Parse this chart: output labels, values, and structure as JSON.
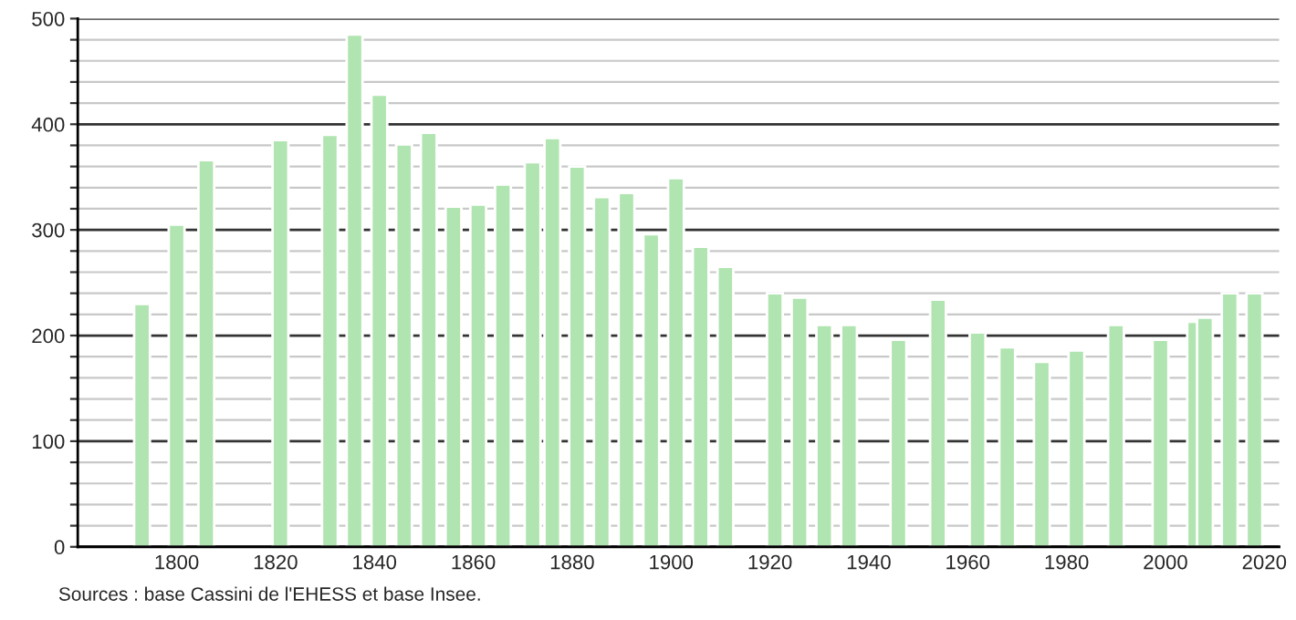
{
  "chart_data": {
    "type": "bar",
    "x": [
      1793,
      1800,
      1806,
      1821,
      1831,
      1836,
      1841,
      1846,
      1851,
      1856,
      1861,
      1866,
      1872,
      1876,
      1881,
      1886,
      1891,
      1896,
      1901,
      1906,
      1911,
      1921,
      1926,
      1931,
      1936,
      1946,
      1954,
      1962,
      1968,
      1975,
      1982,
      1990,
      1999,
      2006,
      2008,
      2013,
      2018
    ],
    "values": [
      230,
      305,
      366,
      385,
      390,
      485,
      428,
      381,
      392,
      322,
      324,
      343,
      364,
      387,
      360,
      331,
      335,
      296,
      349,
      284,
      265,
      240,
      236,
      210,
      210,
      196,
      234,
      203,
      189,
      175,
      186,
      210,
      196,
      213,
      217,
      240,
      240
    ],
    "color": "#b0e4b0",
    "xlim": [
      1780,
      2023
    ],
    "xticks": [
      1800,
      1820,
      1840,
      1860,
      1880,
      1900,
      1920,
      1940,
      1960,
      1980,
      2000,
      2020
    ],
    "ylim": [
      0,
      500
    ],
    "yticks": [
      0,
      {
        "value": 20,
        "label": null
      },
      {
        "value": 40,
        "label": null
      },
      {
        "value": 60,
        "label": null
      },
      {
        "value": 80,
        "label": null
      },
      100,
      {
        "value": 120,
        "label": null
      },
      {
        "value": 140,
        "label": null
      },
      {
        "value": 160,
        "label": null
      },
      {
        "value": 180,
        "label": null
      },
      200,
      {
        "value": 220,
        "label": null
      },
      {
        "value": 240,
        "label": null
      },
      {
        "value": 260,
        "label": null
      },
      {
        "value": 280,
        "label": null
      },
      300,
      {
        "value": 320,
        "label": null
      },
      {
        "value": 340,
        "label": null
      },
      {
        "value": 360,
        "label": null
      },
      {
        "value": 380,
        "label": null
      },
      400,
      {
        "value": 420,
        "label": null
      },
      {
        "value": 440,
        "label": null
      },
      {
        "value": 460,
        "label": null
      },
      {
        "value": 480,
        "label": null
      },
      500
    ],
    "grid": "y",
    "annotations": [
      "Sources : base Cassini de l'EHESS et base Insee."
    ]
  }
}
